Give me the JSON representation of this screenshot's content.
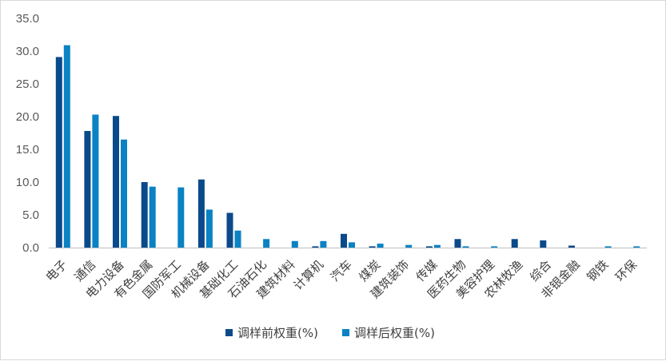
{
  "chart_data": {
    "type": "bar",
    "title": "",
    "xlabel": "",
    "ylabel": "",
    "ylim": [
      0,
      35
    ],
    "yticks": [
      "0.0",
      "5.0",
      "10.0",
      "15.0",
      "20.0",
      "25.0",
      "30.0",
      "35.0"
    ],
    "grid": false,
    "legend_position": "bottom-center",
    "categories": [
      "电子",
      "通信",
      "电力设备",
      "有色金属",
      "国防军工",
      "机械设备",
      "基础化工",
      "石油石化",
      "建筑材料",
      "计算机",
      "汽车",
      "煤炭",
      "建筑装饰",
      "传媒",
      "医药生物",
      "美容护理",
      "农林牧渔",
      "综合",
      "非银金融",
      "钢铁",
      "环保"
    ],
    "series": [
      {
        "name": "调样前权重(%)",
        "color": "#0a4a8a",
        "values": [
          29.1,
          17.8,
          20.1,
          10.0,
          0.0,
          10.4,
          5.3,
          0.0,
          0.0,
          0.2,
          2.1,
          0.2,
          0.0,
          0.2,
          1.3,
          0.0,
          1.3,
          1.1,
          0.3,
          0.0,
          0.0
        ]
      },
      {
        "name": "调样后权重(%)",
        "color": "#0a82c4",
        "values": [
          30.9,
          20.3,
          16.5,
          9.3,
          9.2,
          5.8,
          2.6,
          1.3,
          1.0,
          1.0,
          0.8,
          0.6,
          0.4,
          0.4,
          0.2,
          0.2,
          0.0,
          0.0,
          0.0,
          0.2,
          0.2
        ]
      }
    ]
  }
}
